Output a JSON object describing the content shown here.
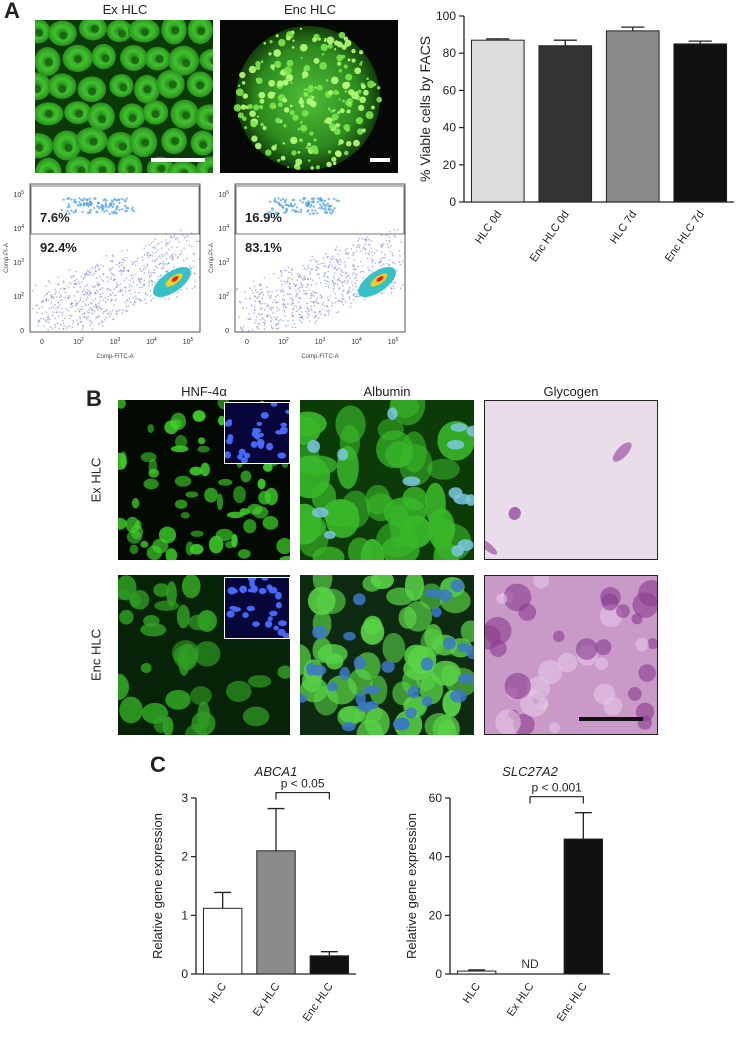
{
  "panelA": {
    "letter": "A",
    "image_labels": [
      "Ex HLC",
      "Enc HLC"
    ],
    "flow": [
      {
        "upper_pct": "7.6%",
        "lower_pct": "92.4%"
      },
      {
        "upper_pct": "16.9%",
        "lower_pct": "83.1%"
      }
    ],
    "flow_axis": {
      "ylabel": "Comp-PI-A",
      "xlabel": "Comp-FITC-A",
      "y_ticks": [
        "10^5",
        "10^4",
        "10^3",
        "10^2",
        "0"
      ],
      "x_ticks": [
        "0",
        "10^2",
        "10^3",
        "10^4",
        "10^5"
      ]
    },
    "viability_chart": {
      "type": "bar",
      "categories": [
        "HLC 0d",
        "Enc HLC 0d",
        "HLC 7d",
        "Enc HLC 7d"
      ],
      "values": [
        87,
        84,
        92,
        85
      ],
      "errors": [
        0.7,
        3,
        2,
        1.5
      ],
      "colors": [
        "#dcdcdc",
        "#333333",
        "#8a8a8a",
        "#111111"
      ],
      "ylabel": "% Viable cells by FACS",
      "ylim": [
        0,
        100
      ],
      "yticks": [
        0,
        20,
        40,
        60,
        80,
        100
      ]
    }
  },
  "panelB": {
    "letter": "B",
    "column_labels": [
      "HNF-4α",
      "Albumin",
      "Glycogen"
    ],
    "row_labels": [
      "Ex HLC",
      "Enc HLC"
    ]
  },
  "panelC": {
    "letter": "C",
    "charts": [
      {
        "type": "bar",
        "title": "ABCA1",
        "categories": [
          "HLC",
          "Ex HLC",
          "Enc HLC"
        ],
        "values": [
          1.12,
          2.1,
          0.31
        ],
        "errors": [
          0.27,
          0.72,
          0.07
        ],
        "colors": [
          "#ffffff",
          "#8a8a8a",
          "#111111"
        ],
        "ylabel": "Relative gene expression",
        "ylim": [
          0,
          3
        ],
        "yticks": [
          0,
          1,
          2,
          3
        ],
        "significance": {
          "label": "p < 0.05",
          "between": [
            1,
            2
          ]
        }
      },
      {
        "type": "bar",
        "title": "SLC27A2",
        "categories": [
          "HLC",
          "Ex HLC",
          "Enc HLC"
        ],
        "values": [
          1,
          0,
          46
        ],
        "errors": [
          0.4,
          0,
          9
        ],
        "colors": [
          "#ffffff",
          "#8a8a8a",
          "#111111"
        ],
        "ylabel": "Relative gene expression",
        "ylim": [
          0,
          60
        ],
        "yticks": [
          0,
          20,
          40,
          60
        ],
        "annotations": [
          {
            "category": 1,
            "text": "ND"
          }
        ],
        "significance": {
          "label": "p < 0.001",
          "between": [
            1,
            2
          ]
        }
      }
    ]
  }
}
